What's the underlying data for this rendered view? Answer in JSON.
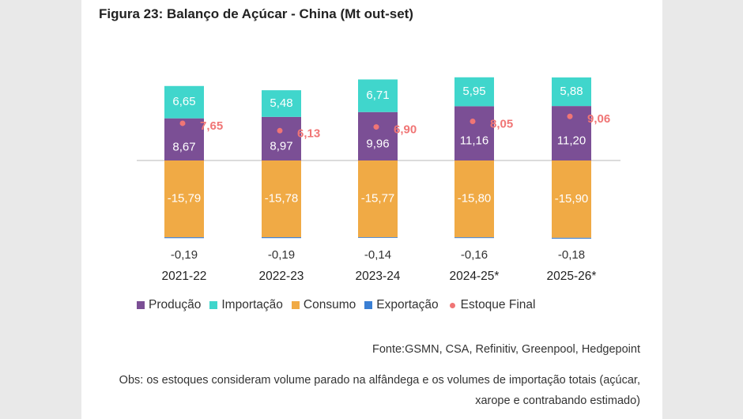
{
  "title": "Figura 23: Balanço de Açúcar - China (Mt out-set)",
  "legend": {
    "producao": "Produção",
    "importacao": "Importação",
    "consumo": "Consumo",
    "exportacao": "Exportação",
    "estoque": "Estoque Final"
  },
  "source": "Fonte:GSMN, CSA, Refinitiv, Greenpool, Hedgepoint",
  "obs": "Obs: os estoques consideram volume parado na alfândega e os volumes de importação totais (açúcar, xarope e contrabando estimado)",
  "colors": {
    "producao": "#7b4f95",
    "importacao": "#40d6cc",
    "consumo": "#f0aa45",
    "exportacao": "#3a7fd4",
    "estoque": "#f07575"
  },
  "chart_data": {
    "type": "bar",
    "stacked": true,
    "categories": [
      "2021-22",
      "2022-23",
      "2023-24",
      "2024-25*",
      "2025-26*"
    ],
    "series": [
      {
        "name": "Produção",
        "values": [
          8.67,
          8.97,
          9.96,
          11.16,
          11.2
        ],
        "labels": [
          "8,67",
          "8,97",
          "9,96",
          "11,16",
          "11,20"
        ]
      },
      {
        "name": "Importação",
        "values": [
          6.65,
          5.48,
          6.71,
          5.95,
          5.88
        ],
        "labels": [
          "6,65",
          "5,48",
          "6,71",
          "5,95",
          "5,88"
        ]
      },
      {
        "name": "Consumo",
        "values": [
          -15.79,
          -15.78,
          -15.77,
          -15.8,
          -15.9
        ],
        "labels": [
          "-15,79",
          "-15,78",
          "-15,77",
          "-15,80",
          "-15,90"
        ]
      },
      {
        "name": "Exportação",
        "values": [
          -0.19,
          -0.19,
          -0.14,
          -0.16,
          -0.18
        ],
        "labels": [
          "-0,19",
          "-0,19",
          "-0,14",
          "-0,16",
          "-0,18"
        ]
      },
      {
        "name": "Estoque Final",
        "type": "scatter",
        "values": [
          7.65,
          6.13,
          6.9,
          8.05,
          9.06
        ],
        "labels": [
          "7,65",
          "6,13",
          "6,90",
          "8,05",
          "9,06"
        ]
      }
    ],
    "grid": false,
    "legend_position": "bottom"
  }
}
